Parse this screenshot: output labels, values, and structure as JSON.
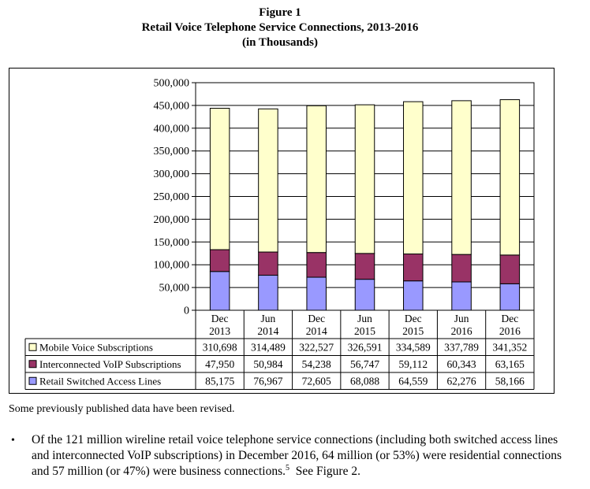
{
  "figure": {
    "label": "Figure 1",
    "title": "Retail Voice Telephone Service Connections, 2013-2016",
    "units": "(in Thousands)"
  },
  "chart_data": {
    "type": "stacked-bar",
    "ylim": [
      0,
      500000
    ],
    "yticks": [
      "0",
      "50,000",
      "100,000",
      "150,000",
      "200,000",
      "250,000",
      "300,000",
      "350,000",
      "400,000",
      "450,000",
      "500,000"
    ],
    "ytick_values": [
      0,
      50000,
      100000,
      150000,
      200000,
      250000,
      300000,
      350000,
      400000,
      450000,
      500000
    ],
    "categories": [
      {
        "line1": "Dec",
        "line2": "2013"
      },
      {
        "line1": "Jun",
        "line2": "2014"
      },
      {
        "line1": "Dec",
        "line2": "2014"
      },
      {
        "line1": "Jun",
        "line2": "2015"
      },
      {
        "line1": "Dec",
        "line2": "2015"
      },
      {
        "line1": "Jun",
        "line2": "2016"
      },
      {
        "line1": "Dec",
        "line2": "2016"
      }
    ],
    "series": [
      {
        "name": "Mobile Voice Subscriptions",
        "color": "#FFFFCC",
        "values": [
          310698,
          314489,
          322527,
          326591,
          334589,
          337789,
          341352
        ],
        "labels": [
          "310,698",
          "314,489",
          "322,527",
          "326,591",
          "334,589",
          "337,789",
          "341,352"
        ]
      },
      {
        "name": "Interconnected VoIP Subscriptions",
        "color": "#993366",
        "values": [
          47950,
          50984,
          54238,
          56747,
          59112,
          60343,
          63165
        ],
        "labels": [
          "47,950",
          "50,984",
          "54,238",
          "56,747",
          "59,112",
          "60,343",
          "63,165"
        ]
      },
      {
        "name": "Retail Switched Access Lines",
        "color": "#9999FF",
        "values": [
          85175,
          76967,
          72605,
          68088,
          64559,
          62276,
          58166
        ],
        "labels": [
          "85,175",
          "76,967",
          "72,605",
          "68,088",
          "64,559",
          "62,276",
          "58,166"
        ]
      }
    ],
    "stack_order_bottom_to_top": [
      2,
      1,
      0
    ],
    "gridlines": true,
    "legend": "table-below"
  },
  "note": "Some previously published data have been revised.",
  "bullet": {
    "marker": "•",
    "text": "Of the 121 million wireline retail voice telephone service connections (including both switched access lines and interconnected VoIP subscriptions) in December 2016, 64 million (or 53%) were residential connections and 57 million (or 47%) were business connections.",
    "footnote": "5",
    "trailing": "  See Figure 2."
  }
}
